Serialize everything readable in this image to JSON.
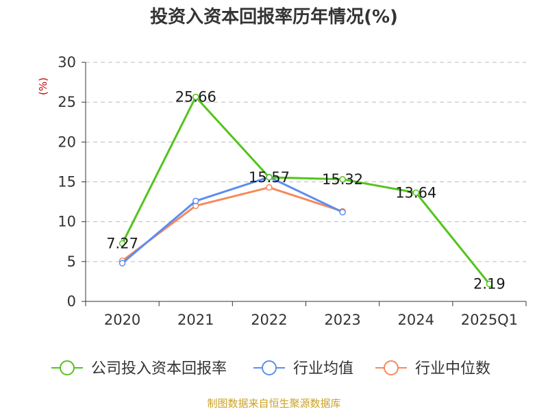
{
  "chart_data": {
    "type": "line",
    "title": "投资入资本回报率历年情况(%)",
    "ylabel": "(%)",
    "xlabel": "",
    "categories": [
      "2020",
      "2021",
      "2022",
      "2023",
      "2024",
      "2025Q1"
    ],
    "ylim": [
      0,
      30
    ],
    "yticks": [
      "0",
      "5",
      "10",
      "15",
      "20",
      "25",
      "30"
    ],
    "grid": true,
    "legend_position": "bottom",
    "series": [
      {
        "name": "公司投入资本回报率",
        "color": "#52c41a",
        "values": [
          7.27,
          25.66,
          15.57,
          15.32,
          13.64,
          2.19
        ],
        "labels": [
          "7.27",
          "25.66",
          "15.57",
          "15.32",
          "13.64",
          "2.19"
        ],
        "show_labels": true
      },
      {
        "name": "行业均值",
        "color": "#5b8def",
        "values": [
          4.8,
          12.6,
          15.6,
          11.2,
          null,
          null
        ],
        "show_labels": false
      },
      {
        "name": "行业中位数",
        "color": "#f5895a",
        "values": [
          5.1,
          12.0,
          14.3,
          11.3,
          null,
          null
        ],
        "show_labels": false
      }
    ]
  },
  "source": "制图数据来自恒生聚源数据库",
  "colors": {
    "axis": "#333333",
    "grid": "#bbbbbb",
    "ylabel": "#cc0000",
    "source": "#c9a227"
  }
}
